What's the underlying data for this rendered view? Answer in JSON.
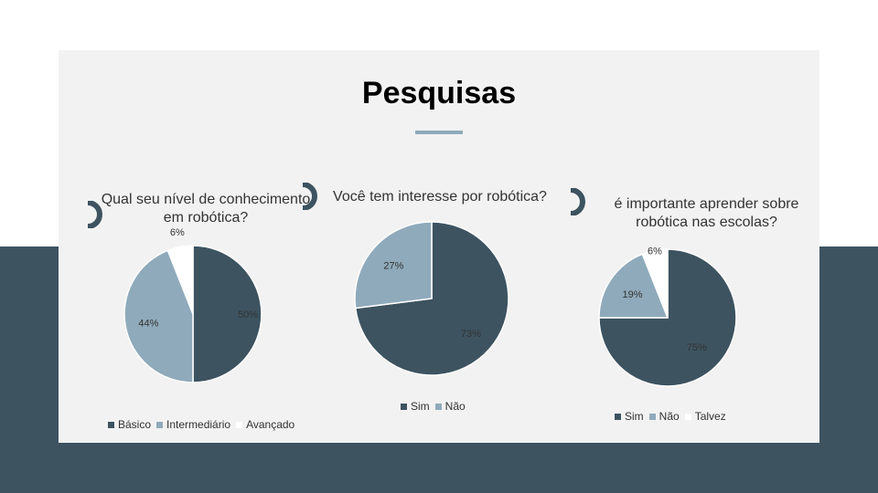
{
  "title": "Pesquisas",
  "colors": {
    "dark": "#3d5360",
    "light": "#8faabb",
    "white": "#ffffff",
    "panel": "#f2f2f2",
    "band": "#3d5360"
  },
  "decor_icon": "half-ring-icon",
  "chart_data": [
    {
      "type": "pie",
      "title": "Qual seu nível de conhecimento em robótica?",
      "categories": [
        "Básico",
        "Intermediário",
        "Avançado"
      ],
      "values": [
        50,
        44,
        6
      ],
      "labels": [
        "50%",
        "44%",
        "6%"
      ],
      "colors": [
        "#3d5360",
        "#8faabb",
        "#ffffff"
      ],
      "legend": "bottom"
    },
    {
      "type": "pie",
      "title": "Você tem interesse por robótica?",
      "categories": [
        "Sim",
        "Não"
      ],
      "values": [
        73,
        27
      ],
      "labels": [
        "73%",
        "27%"
      ],
      "colors": [
        "#3d5360",
        "#8faabb"
      ],
      "legend": "bottom"
    },
    {
      "type": "pie",
      "title": "é importante aprender sobre robótica nas escolas?",
      "categories": [
        "Sim",
        "Não",
        "Talvez"
      ],
      "values": [
        75,
        19,
        6
      ],
      "labels": [
        "75%",
        "19%",
        "6%"
      ],
      "colors": [
        "#3d5360",
        "#8faabb",
        "#ffffff"
      ],
      "legend": "bottom"
    }
  ]
}
